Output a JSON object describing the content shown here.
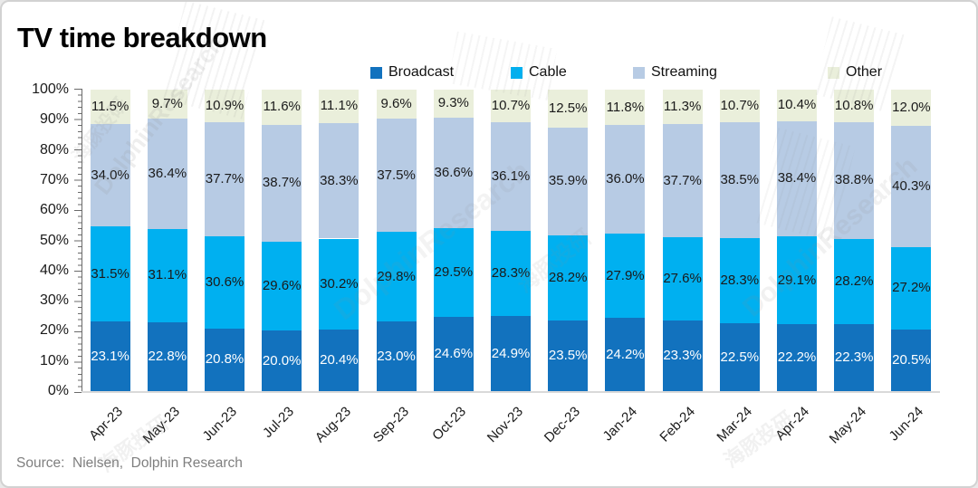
{
  "title": "TV time breakdown",
  "source": "Source:  Nielsen,  Dolphin Research",
  "watermark": {
    "latin": "DolphinResearch",
    "cjk": "海豚投研"
  },
  "colors": {
    "broadcast": "#1272BE",
    "cable": "#00B0F0",
    "streaming": "#B7CBE4",
    "other": "#EAEFDB",
    "axis": "#6a6a6a",
    "baseline": "#d9d9d9",
    "source_text": "#7f7f7f"
  },
  "chart_data": {
    "type": "bar",
    "stacked": true,
    "percent_stacked": true,
    "title": "TV time breakdown",
    "xlabel": "",
    "ylabel": "",
    "ylim": [
      0,
      100
    ],
    "yticks": [
      0,
      10,
      20,
      30,
      40,
      50,
      60,
      70,
      80,
      90,
      100
    ],
    "ytick_suffix": "%",
    "grid": false,
    "legend_position": "top",
    "categories": [
      "Apr-23",
      "May-23",
      "Jun-23",
      "Jul-23",
      "Aug-23",
      "Sep-23",
      "Oct-23",
      "Nov-23",
      "Dec-23",
      "Jan-24",
      "Feb-24",
      "Mar-24",
      "Apr-24",
      "May-24",
      "Jun-24"
    ],
    "series": [
      {
        "name": "Broadcast",
        "color": "#1272BE",
        "label_color": "#ffffff",
        "values": [
          23.1,
          22.8,
          20.8,
          20.0,
          20.4,
          23.0,
          24.6,
          24.9,
          23.5,
          24.2,
          23.3,
          22.5,
          22.2,
          22.3,
          20.5
        ]
      },
      {
        "name": "Cable",
        "color": "#00B0F0",
        "label_color": "#1a1a1a",
        "values": [
          31.5,
          31.1,
          30.6,
          29.6,
          30.2,
          29.8,
          29.5,
          28.3,
          28.2,
          27.9,
          27.6,
          28.3,
          29.1,
          28.2,
          27.2
        ]
      },
      {
        "name": "Streaming",
        "color": "#B7CBE4",
        "label_color": "#1a1a1a",
        "values": [
          34.0,
          36.4,
          37.7,
          38.7,
          38.3,
          37.5,
          36.6,
          36.1,
          35.9,
          36.0,
          37.7,
          38.5,
          38.4,
          38.8,
          40.3
        ]
      },
      {
        "name": "Other",
        "color": "#EAEFDB",
        "label_color": "#1a1a1a",
        "values": [
          11.5,
          9.7,
          10.9,
          11.6,
          11.1,
          9.6,
          9.3,
          10.7,
          12.5,
          11.8,
          11.3,
          10.7,
          10.4,
          10.8,
          12.0
        ]
      }
    ],
    "data_label_format": "0.0%"
  }
}
